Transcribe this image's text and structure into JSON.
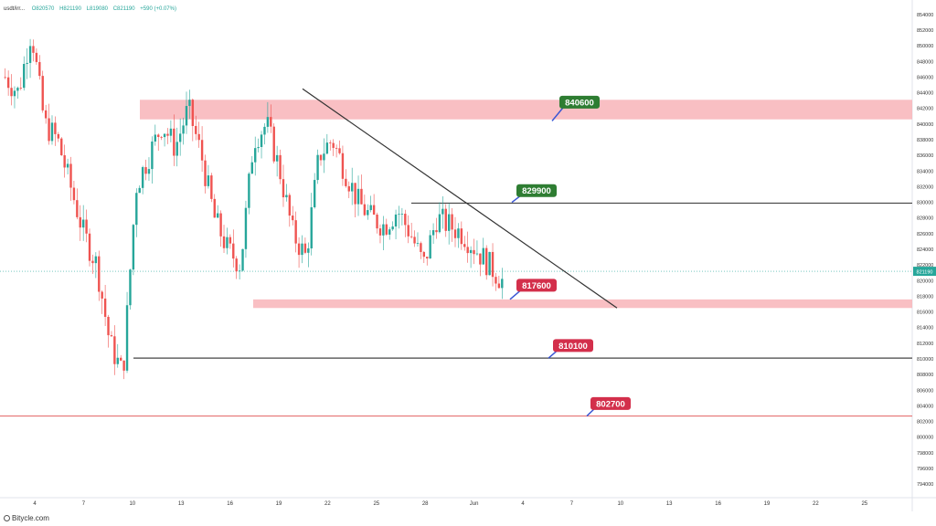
{
  "header": {
    "symbol": "usdt/irr...",
    "open": "O820570",
    "high": "H821190",
    "low": "L819080",
    "close": "C821190",
    "change": "+590 (+0.07%)"
  },
  "watermark": "Bitycle.com",
  "chart_data": {
    "type": "candlestick",
    "title": "",
    "ylim": [
      792500,
      855500
    ],
    "y_ticks": [
      794000,
      796000,
      798000,
      800000,
      802000,
      804000,
      806000,
      808000,
      810000,
      812000,
      814000,
      816000,
      818000,
      820000,
      822000,
      824000,
      826000,
      828000,
      830000,
      832000,
      834000,
      836000,
      838000,
      840000,
      842000,
      844000,
      846000,
      848000,
      850000,
      852000,
      854000
    ],
    "x_ticks": [
      "4",
      "7",
      "10",
      "13",
      "16",
      "19",
      "22",
      "25",
      "28",
      "Jun",
      "4",
      "7",
      "10",
      "13",
      "16",
      "19",
      "22",
      "25"
    ],
    "current_price": "821190",
    "current_price_value": 821190,
    "candles_close_path": [
      846000,
      844000,
      852000,
      840000,
      838000,
      832000,
      826000,
      822000,
      812000,
      808000,
      832000,
      836000,
      840000,
      837000,
      842000,
      836000,
      828000,
      824000,
      822000,
      838000,
      840000,
      834000,
      826000,
      823000,
      836000,
      838000,
      834000,
      830000,
      828000,
      827000,
      829000,
      826000,
      822000,
      828000,
      827000,
      826000,
      824000,
      822000,
      820000
    ],
    "zones": [
      {
        "label": "840600",
        "low": 840600,
        "high": 843100,
        "color": "#f8b4b8"
      },
      {
        "label": "817600",
        "low": 816500,
        "high": 817600,
        "color": "#f8b4b8"
      }
    ],
    "levels": [
      {
        "label": "829900",
        "value": 829900,
        "color": "#444444",
        "badge": "#2e7d32"
      },
      {
        "label": "810100",
        "value": 810100,
        "color": "#444444",
        "badge": "#d32f4b"
      },
      {
        "label": "802700",
        "value": 802700,
        "color": "#e57373",
        "badge": "#d32f4b"
      }
    ],
    "trendline": {
      "from": 844500,
      "to": 816500
    },
    "colors": {
      "up": "#26a69a",
      "down": "#ef5350",
      "badge_green": "#2e7d32",
      "badge_red": "#d32f4b"
    },
    "grid": false
  }
}
